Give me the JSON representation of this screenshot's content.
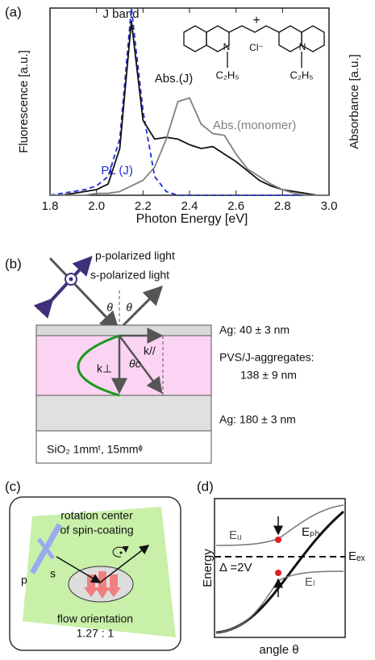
{
  "chart_data": {
    "type": "line",
    "panel_label": "(a)",
    "x_label": "Photon Energy [eV]",
    "y_label": "Fluorescence [a.u.]",
    "y2_label": "Absorbance [a.u.]",
    "annotation": "J band",
    "molecule": {
      "plus": "+",
      "nitrogen": "N",
      "counter_ion": "Cl⁻",
      "ethyl": "C₂H₅"
    },
    "x": [
      1.8,
      1.85,
      1.9,
      1.95,
      2.0,
      2.05,
      2.1,
      2.15,
      2.2,
      2.25,
      2.3,
      2.35,
      2.4,
      2.45,
      2.5,
      2.55,
      2.6,
      2.65,
      2.7,
      2.75,
      2.8,
      2.85,
      2.9,
      2.95,
      3.0
    ],
    "series": [
      {
        "name": "PL (J)",
        "color": "#1f2fd0",
        "dashed": true,
        "label_pos": [
          2.02,
          0.13
        ],
        "values": [
          0.0,
          0.01,
          0.02,
          0.03,
          0.05,
          0.1,
          0.3,
          1.0,
          0.45,
          0.1,
          0.02,
          0.0,
          0.0,
          0.0,
          0.0,
          0.0,
          0.0,
          0.0,
          0.0,
          0.0,
          0.0,
          0.0,
          0.0,
          0.0,
          0.0
        ]
      },
      {
        "name": "Abs.(J)",
        "color": "#111111",
        "dashed": false,
        "label_pos": [
          2.25,
          0.62
        ],
        "values": [
          0.0,
          0.0,
          0.01,
          0.02,
          0.03,
          0.06,
          0.25,
          0.93,
          0.4,
          0.3,
          0.31,
          0.3,
          0.27,
          0.25,
          0.26,
          0.22,
          0.18,
          0.13,
          0.08,
          0.05,
          0.03,
          0.02,
          0.01,
          0.0,
          0.0
        ]
      },
      {
        "name": "Abs.(monomer)",
        "color": "#808080",
        "dashed": false,
        "label_pos": [
          2.5,
          0.37
        ],
        "values": [
          0.0,
          0.0,
          0.0,
          0.0,
          0.01,
          0.01,
          0.02,
          0.05,
          0.08,
          0.15,
          0.3,
          0.5,
          0.52,
          0.38,
          0.33,
          0.32,
          0.22,
          0.14,
          0.1,
          0.06,
          0.03,
          0.01,
          0.0,
          0.0,
          0.0
        ]
      }
    ],
    "xlim": [
      1.8,
      3.0
    ],
    "xticks": [
      1.8,
      {
        "value": 2.0,
        "label": "2.0"
      },
      2.2,
      2.4,
      2.6,
      2.8,
      {
        "value": 3.0,
        "label": "3.0"
      }
    ],
    "ylim": [
      0,
      1
    ]
  },
  "panel_b": {
    "label": "(b)",
    "p_light": "p-polarized light",
    "s_light": "s-polarized light",
    "theta": "θ",
    "k_perp": "k⊥",
    "k_par": "k//",
    "theta_c": "θc",
    "ag_top": "Ag: 40 ± 3 nm",
    "pvs": "PVS/J-aggregates:",
    "pvs_thickness": "138 ± 9 nm",
    "ag_bottom": "Ag: 180 ± 3 nm",
    "substrate": "SiO₂ 1mmᵗ, 15mmᶲ"
  },
  "panel_c": {
    "label": "(c)",
    "rotation_1": "rotation center",
    "rotation_2": "of spin-coating",
    "p": "p",
    "s": "s",
    "flow": "flow orientation",
    "ratio": "1.27 : 1"
  },
  "panel_d": {
    "label": "(d)",
    "e_u": "Eᵤ",
    "e_ph": "Eₚₕ",
    "e_ex": "Eₑₓ",
    "e_l": "Eₗ",
    "delta": "Δ =2V",
    "y_label": "Energy",
    "x_label": "angle θ"
  }
}
